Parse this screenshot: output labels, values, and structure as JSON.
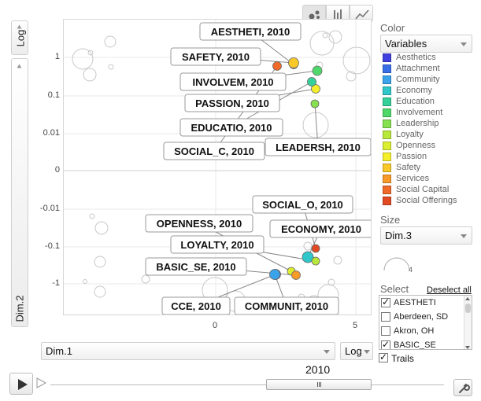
{
  "y_axis": {
    "scale_label": "Log",
    "dim_label": "Dim.2",
    "ticks": [
      "1",
      "0.1",
      "0.01",
      "0",
      "-0.01",
      "-0.1",
      "-1"
    ]
  },
  "x_axis": {
    "dim_label": "Dim.1",
    "scale_label": "Log",
    "ticks": [
      "0",
      "5"
    ]
  },
  "view_tabs": [
    {
      "name": "bubble-chart-tab",
      "icon": "bubbles-icon"
    },
    {
      "name": "bar-chart-tab",
      "icon": "bars-icon"
    },
    {
      "name": "line-chart-tab",
      "icon": "line-icon"
    }
  ],
  "color_panel": {
    "header": "Color",
    "selected": "Variables",
    "legend": [
      {
        "label": "Aesthetics",
        "color": "#4040e0"
      },
      {
        "label": "Attachment",
        "color": "#3a6ee8"
      },
      {
        "label": "Community",
        "color": "#3aa3ea"
      },
      {
        "label": "Economy",
        "color": "#2fc7c9"
      },
      {
        "label": "Education",
        "color": "#34d29a"
      },
      {
        "label": "Involvement",
        "color": "#4fd86a"
      },
      {
        "label": "Leadership",
        "color": "#86e050"
      },
      {
        "label": "Loyalty",
        "color": "#b8e83a"
      },
      {
        "label": "Openness",
        "color": "#dcee30"
      },
      {
        "label": "Passion",
        "color": "#f5ef2b"
      },
      {
        "label": "Safety",
        "color": "#f9c92a"
      },
      {
        "label": "Services",
        "color": "#f79a2a"
      },
      {
        "label": "Social Capital",
        "color": "#f06a2a"
      },
      {
        "label": "Social Offerings",
        "color": "#e24a24"
      }
    ]
  },
  "size_panel": {
    "header": "Size",
    "selected": "Dim.3",
    "dial_value": "4"
  },
  "select_panel": {
    "header": "Select",
    "deselect_link": "Deselect all",
    "items": [
      {
        "label": "AESTHETI",
        "checked": true
      },
      {
        "label": "Aberdeen, SD",
        "checked": false
      },
      {
        "label": "Akron, OH",
        "checked": false
      },
      {
        "label": "BASIC_SE",
        "checked": true
      }
    ]
  },
  "trails": {
    "label": "Trails",
    "checked": true
  },
  "playback": {
    "year": "2010"
  },
  "points": [
    {
      "label": "AESTHETI, 2010",
      "color": "#4040e0"
    },
    {
      "label": "SAFETY, 2010",
      "color": "#f9c92a"
    },
    {
      "label": "INVOLVEM, 2010",
      "color": "#4fd86a"
    },
    {
      "label": "PASSION, 2010",
      "color": "#f5ef2b"
    },
    {
      "label": "EDUCATIO, 2010",
      "color": "#34d29a"
    },
    {
      "label": "SOCIAL_C, 2010",
      "color": "#f06a2a"
    },
    {
      "label": "LEADERSH, 2010",
      "color": "#86e050"
    },
    {
      "label": "SOCIAL_O, 2010",
      "color": "#e24a24"
    },
    {
      "label": "OPENNESS, 2010",
      "color": "#dcee30"
    },
    {
      "label": "ECONOMY, 2010",
      "color": "#2fc7c9"
    },
    {
      "label": "LOYALTY, 2010",
      "color": "#b8e83a"
    },
    {
      "label": "BASIC_SE, 2010",
      "color": "#f79a2a"
    },
    {
      "label": "CCE, 2010",
      "color": "#3a6ee8"
    },
    {
      "label": "COMMUNIT, 2010",
      "color": "#3aa3ea"
    }
  ]
}
